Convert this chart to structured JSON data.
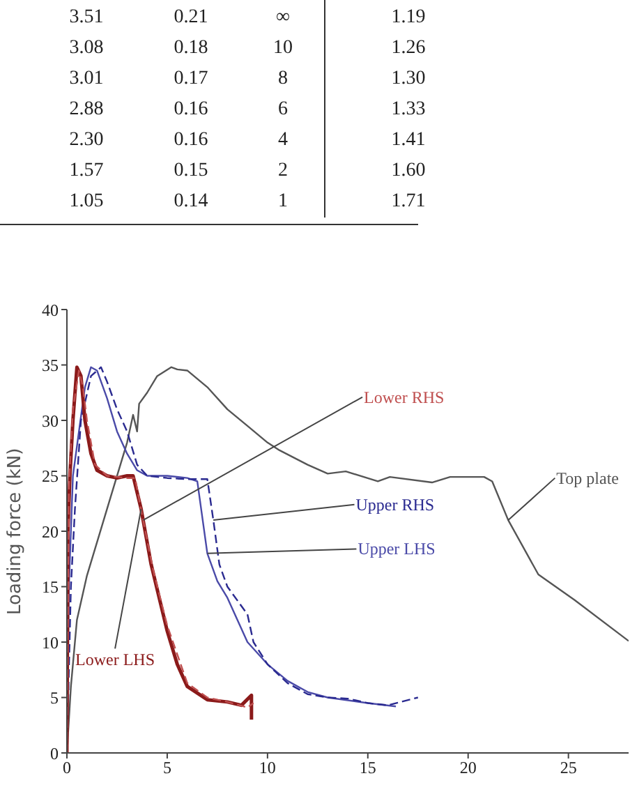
{
  "chart_data": {
    "type": "line",
    "ylabel": "Loading force (kN)",
    "xlim": [
      0,
      28
    ],
    "xticks": [
      0,
      5,
      10,
      15,
      20,
      25
    ],
    "ylim": [
      0,
      40
    ],
    "yticks": [
      0,
      5,
      10,
      15,
      20,
      25,
      30,
      35,
      40
    ],
    "annotations": [
      "3.51 0.21 ∞ 1.19",
      "3.08 0.18 10 1.26",
      "3.01 0.17 8 1.30",
      "2.88 0.16 6 1.33",
      "2.30 0.16 4 1.41",
      "1.57 0.15 2 1.60",
      "1.05 0.14 1 1.71"
    ],
    "series": [
      {
        "name": "Top plate",
        "color": "#555555",
        "line_style": "solid",
        "x": [
          0,
          0.2,
          0.5,
          1,
          2,
          3,
          3.3,
          3.5,
          3.6,
          4,
          4.5,
          5.2,
          5.5,
          6,
          7,
          8,
          9,
          10,
          10.6,
          12,
          13,
          13.9,
          15.5,
          16.1,
          18.2,
          19.1,
          20.8,
          21.2,
          22,
          23.5,
          25.3,
          28
        ],
        "values": [
          0,
          6,
          12,
          16,
          22,
          28,
          30.5,
          29,
          31.5,
          32.5,
          34,
          34.8,
          34.6,
          34.5,
          33,
          31,
          29.5,
          28,
          27.3,
          26,
          25.2,
          25.4,
          24.5,
          24.9,
          24.4,
          24.9,
          24.9,
          24.5,
          21,
          16.1,
          13.8,
          10.1
        ]
      },
      {
        "name": "Upper LHS",
        "color": "#4a4aa8",
        "line_style": "solid",
        "x": [
          0,
          0.1,
          0.3,
          0.6,
          0.9,
          1.2,
          1.5,
          2,
          2.5,
          3,
          3.5,
          4,
          5,
          6,
          6.5,
          7,
          7.5,
          8,
          9,
          10,
          11,
          12,
          13,
          15,
          16.4
        ],
        "values": [
          0,
          15,
          25,
          29,
          33,
          34.8,
          34.5,
          32,
          29,
          27,
          25.5,
          25,
          25,
          24.8,
          24.5,
          18,
          15.5,
          14,
          10,
          8,
          6.5,
          5.5,
          5,
          4.5,
          4.2
        ]
      },
      {
        "name": "Upper RHS",
        "color": "#2a2a90",
        "line_style": "dashed",
        "x": [
          0,
          0.2,
          0.4,
          0.7,
          1.2,
          1.7,
          2,
          2.5,
          3,
          3.5,
          4,
          5,
          6,
          7,
          7.3,
          7.6,
          8,
          9,
          9.3,
          10,
          11,
          12,
          13,
          14,
          15,
          16,
          17.5
        ],
        "values": [
          0,
          15,
          22,
          30,
          34,
          34.8,
          33.5,
          31,
          29,
          26,
          25,
          24.8,
          24.7,
          24.7,
          21,
          17,
          15,
          12.5,
          10,
          8,
          6.3,
          5.3,
          5,
          4.9,
          4.5,
          4.3,
          5
        ]
      },
      {
        "name": "Lower LHS",
        "color": "#8b1a1a",
        "line_style": "solid",
        "x": [
          0,
          0.05,
          0.15,
          0.3,
          0.5,
          0.7,
          0.9,
          1.2,
          1.5,
          2,
          2.5,
          3,
          3.3,
          3.7,
          4.2,
          4.6,
          5,
          5.5,
          6,
          7,
          8,
          8.7,
          9.2,
          9.2
        ],
        "values": [
          0,
          20,
          25,
          30,
          34.8,
          34,
          30,
          27,
          25.5,
          25,
          24.8,
          25,
          25,
          22,
          17,
          14,
          11,
          8,
          6,
          4.8,
          4.6,
          4.3,
          5.2,
          3
        ]
      },
      {
        "name": "Lower RHS",
        "color": "#c05050",
        "line_style": "dashed",
        "x": [
          0,
          0.1,
          0.3,
          0.6,
          0.8,
          1,
          1.4,
          2,
          3,
          3.4,
          3.8,
          4.3,
          5,
          6,
          7,
          8,
          9,
          9.3
        ],
        "values": [
          0,
          24,
          31,
          34.5,
          33,
          30,
          26,
          25,
          24.8,
          24.8,
          21,
          16.5,
          11.5,
          6.3,
          5,
          4.6,
          4.1,
          4.5
        ]
      }
    ]
  }
}
